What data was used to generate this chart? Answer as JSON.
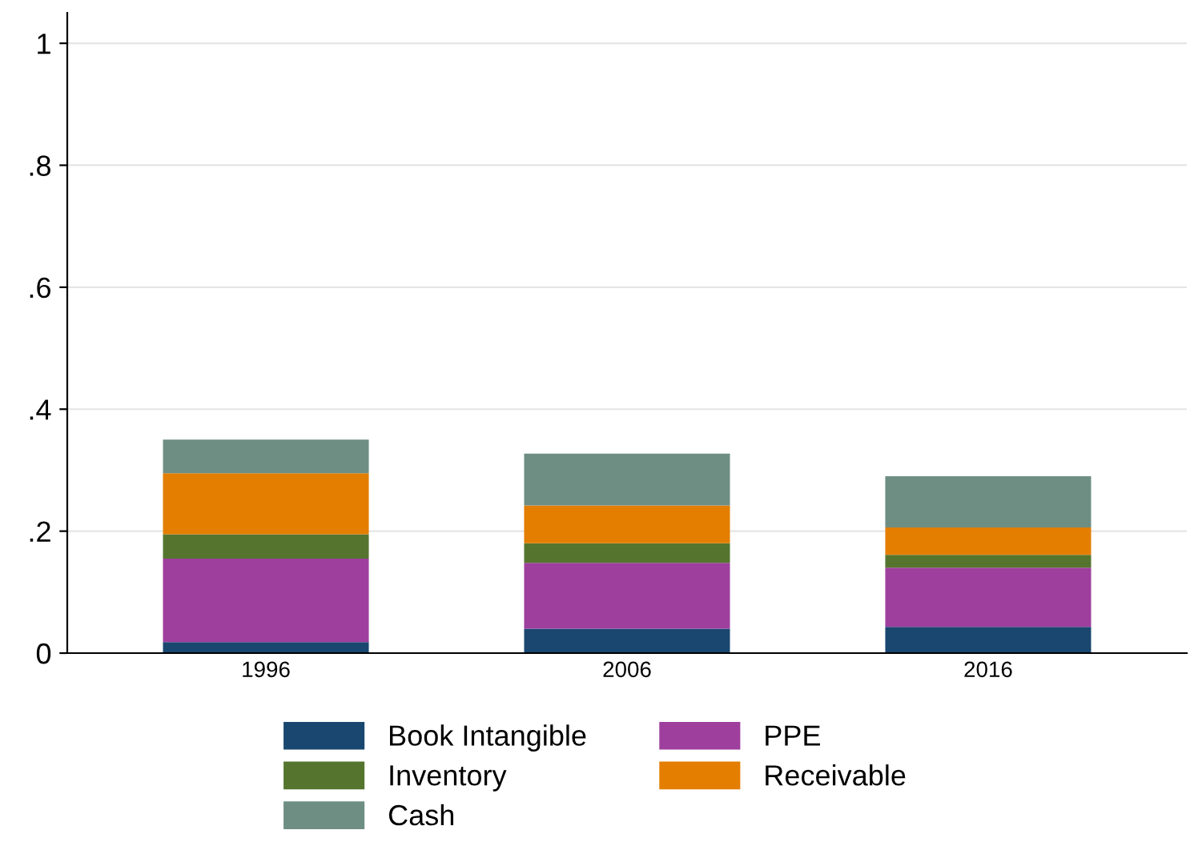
{
  "chart_data": {
    "type": "bar",
    "stacked": true,
    "categories": [
      "1996",
      "2006",
      "2016"
    ],
    "series": [
      {
        "name": "Book Intangible",
        "color": "#1a476f",
        "values": [
          0.018,
          0.04,
          0.043
        ]
      },
      {
        "name": "PPE",
        "color": "#9e3f9e",
        "values": [
          0.137,
          0.108,
          0.097
        ]
      },
      {
        "name": "Inventory",
        "color": "#55752f",
        "values": [
          0.04,
          0.032,
          0.021
        ]
      },
      {
        "name": "Receivable",
        "color": "#e37e00",
        "values": [
          0.1,
          0.062,
          0.045
        ]
      },
      {
        "name": "Cash",
        "color": "#6e8e84",
        "values": [
          0.055,
          0.085,
          0.084
        ]
      }
    ],
    "ylim": [
      0,
      1.05
    ],
    "yticks": [
      {
        "value": 0,
        "label": "0"
      },
      {
        "value": 0.2,
        "label": ".2"
      },
      {
        "value": 0.4,
        "label": ".4"
      },
      {
        "value": 0.6,
        "label": ".6"
      },
      {
        "value": 0.8,
        "label": ".8"
      },
      {
        "value": 1,
        "label": "1"
      }
    ],
    "grid": "y",
    "legend": "bottom"
  }
}
